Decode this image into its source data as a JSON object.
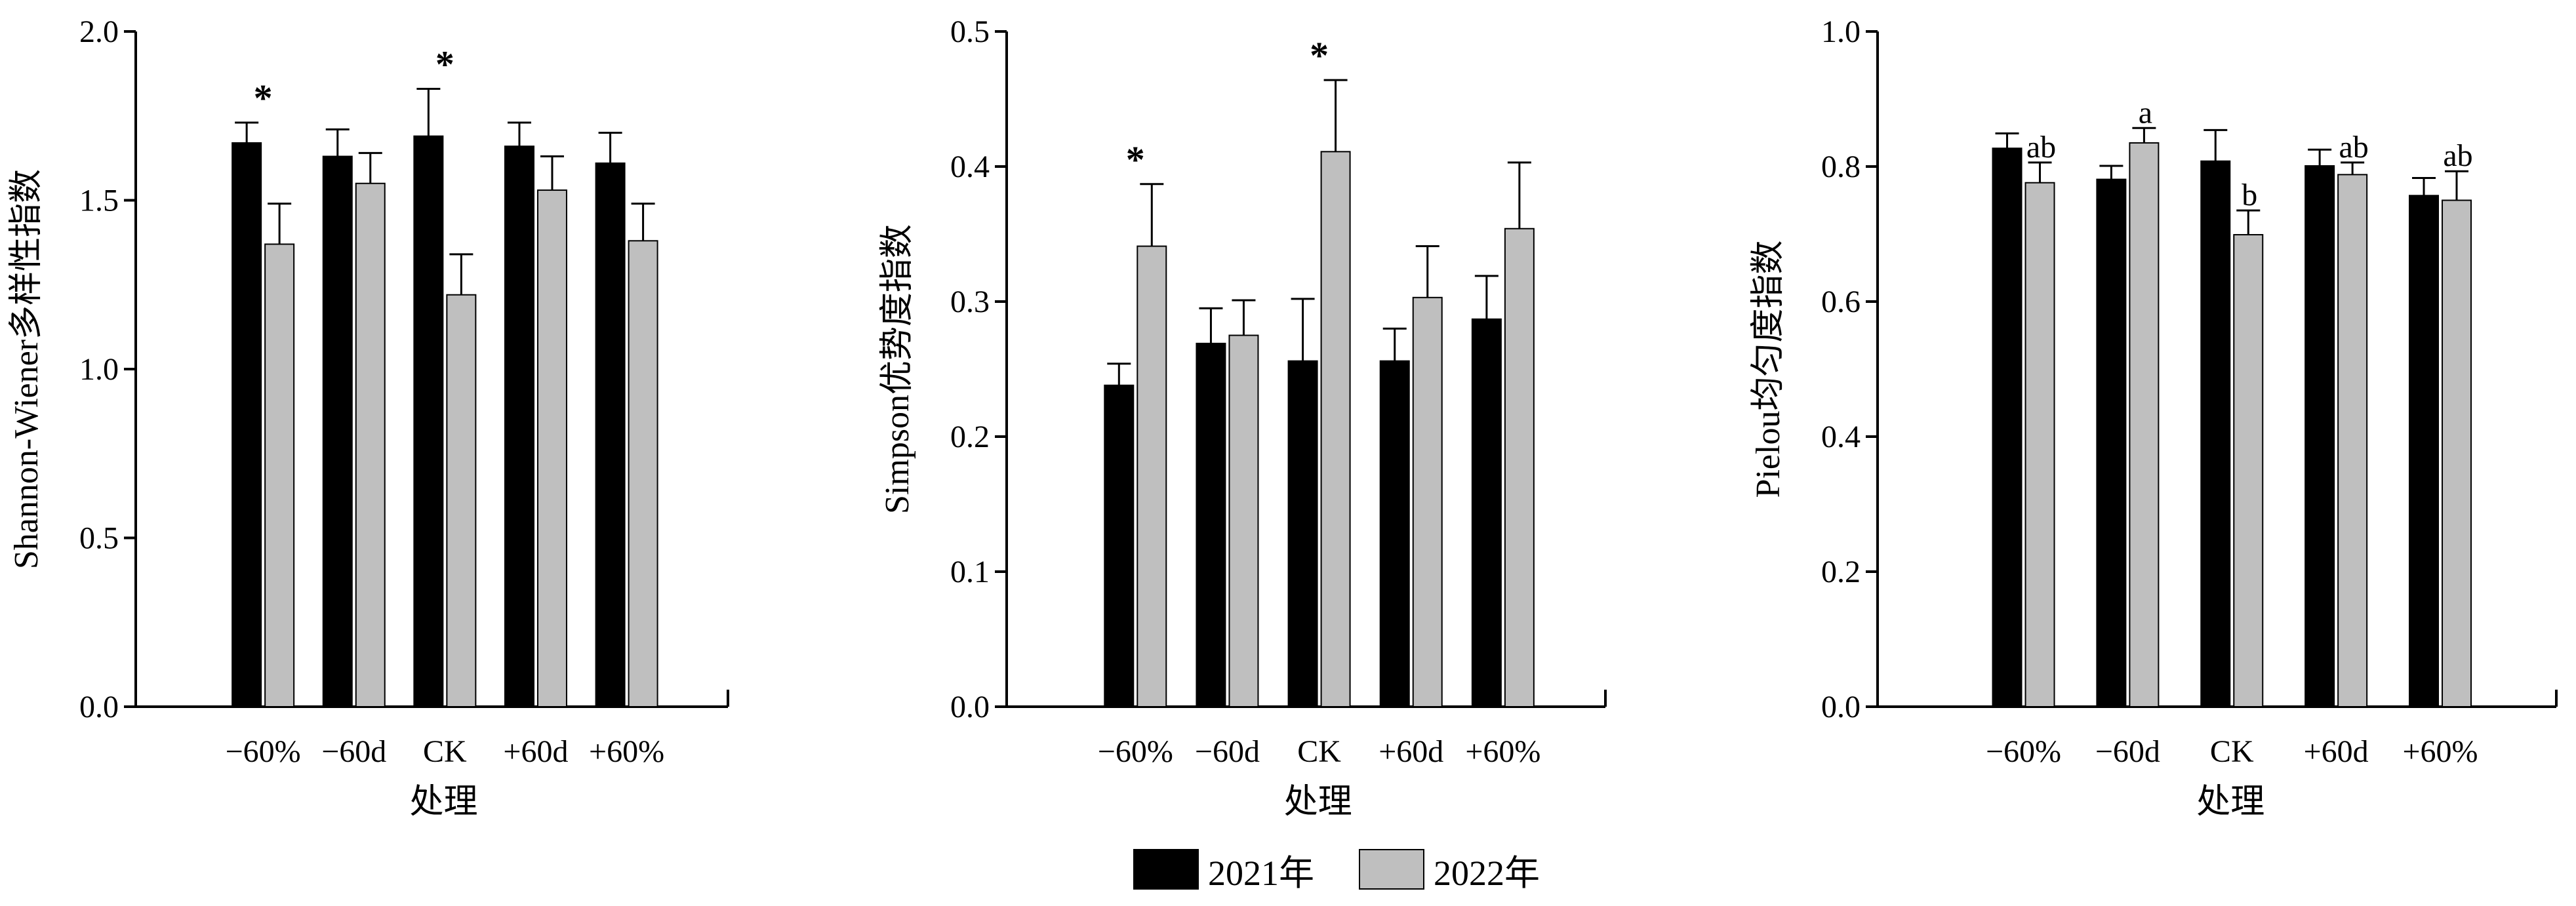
{
  "colors": {
    "y2021": "#000000",
    "y2022": "#bfbfbf"
  },
  "legend": {
    "y2021": "2021年",
    "y2022": "2022年"
  },
  "chart_data": [
    {
      "type": "bar",
      "ylabel": "Shannon-Wiener多样性指数",
      "xlabel": "处理",
      "categories": [
        "−60%",
        "−60d",
        "CK",
        "+60d",
        "+60%"
      ],
      "ylim": [
        0,
        2.0
      ],
      "yticks": [
        "0.0",
        "0.5",
        "1.0",
        "1.5",
        "2.0"
      ],
      "series": [
        {
          "name": "2021年",
          "values": [
            1.67,
            1.63,
            1.69,
            1.66,
            1.61
          ],
          "errors": [
            0.06,
            0.08,
            0.14,
            0.07,
            0.09
          ]
        },
        {
          "name": "2022年",
          "values": [
            1.37,
            1.55,
            1.22,
            1.53,
            1.38
          ],
          "errors": [
            0.12,
            0.09,
            0.12,
            0.1,
            0.11
          ]
        }
      ],
      "annotations": [
        {
          "category": "−60%",
          "text": "*"
        },
        {
          "category": "CK",
          "text": "*"
        }
      ]
    },
    {
      "type": "bar",
      "ylabel": "Simpson优势度指数",
      "xlabel": "处理",
      "categories": [
        "−60%",
        "−60d",
        "CK",
        "+60d",
        "+60%"
      ],
      "ylim": [
        0,
        0.5
      ],
      "yticks": [
        "0.0",
        "0.1",
        "0.2",
        "0.3",
        "0.4",
        "0.5"
      ],
      "series": [
        {
          "name": "2021年",
          "values": [
            0.238,
            0.269,
            0.256,
            0.256,
            0.287
          ],
          "errors": [
            0.016,
            0.026,
            0.046,
            0.024,
            0.032
          ]
        },
        {
          "name": "2022年",
          "values": [
            0.341,
            0.275,
            0.411,
            0.303,
            0.354
          ],
          "errors": [
            0.046,
            0.026,
            0.053,
            0.038,
            0.049
          ]
        }
      ],
      "annotations": [
        {
          "category": "−60%",
          "text": "*"
        },
        {
          "category": "CK",
          "text": "*"
        }
      ]
    },
    {
      "type": "bar",
      "ylabel": "Pielou均匀度指数",
      "xlabel": "处理",
      "categories": [
        "−60%",
        "−60d",
        "CK",
        "+60d",
        "+60%"
      ],
      "ylim": [
        0,
        1.0
      ],
      "yticks": [
        "0.0",
        "0.2",
        "0.4",
        "0.6",
        "0.8",
        "1.0"
      ],
      "series": [
        {
          "name": "2021年",
          "values": [
            0.827,
            0.781,
            0.808,
            0.801,
            0.757
          ],
          "errors": [
            0.022,
            0.02,
            0.046,
            0.024,
            0.026
          ]
        },
        {
          "name": "2022年",
          "values": [
            0.776,
            0.835,
            0.699,
            0.788,
            0.75
          ],
          "errors": [
            0.03,
            0.022,
            0.036,
            0.018,
            0.043
          ]
        }
      ],
      "annotations": [
        {
          "category": "−60%",
          "text": "ab"
        },
        {
          "category": "−60d",
          "text": "a"
        },
        {
          "category": "CK",
          "text": "b"
        },
        {
          "category": "+60d",
          "text": "ab"
        },
        {
          "category": "+60%",
          "text": "ab"
        }
      ]
    }
  ]
}
